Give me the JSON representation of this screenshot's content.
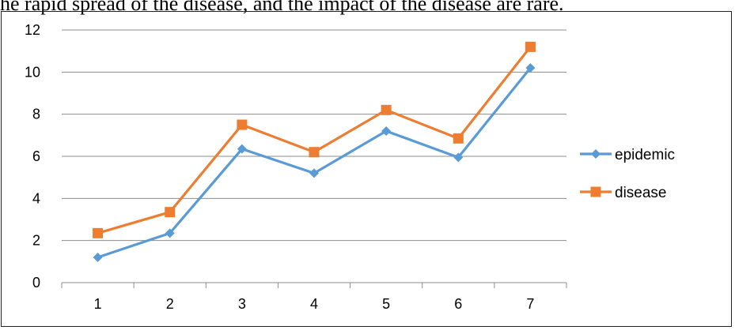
{
  "caption": "he rapid spread of the disease, and the impact of the disease are rare.",
  "colors": {
    "epidemic": "#5B9BD5",
    "disease": "#ED7D31",
    "grid": "#8c8c8c",
    "axis": "#8c8c8c"
  },
  "chart_data": {
    "type": "line",
    "title": "",
    "xlabel": "",
    "ylabel": "",
    "categories": [
      "1",
      "2",
      "3",
      "4",
      "5",
      "6",
      "7"
    ],
    "ylim": [
      0,
      12
    ],
    "yticks": [
      0,
      2,
      4,
      6,
      8,
      10,
      12
    ],
    "grid": true,
    "legend_position": "right",
    "series": [
      {
        "name": "epidemic",
        "marker": "diamond",
        "values": [
          1.2,
          2.35,
          6.35,
          5.2,
          7.2,
          5.95,
          10.2
        ]
      },
      {
        "name": "disease",
        "marker": "square",
        "values": [
          2.35,
          3.35,
          7.5,
          6.2,
          8.2,
          6.85,
          11.2
        ]
      }
    ]
  }
}
